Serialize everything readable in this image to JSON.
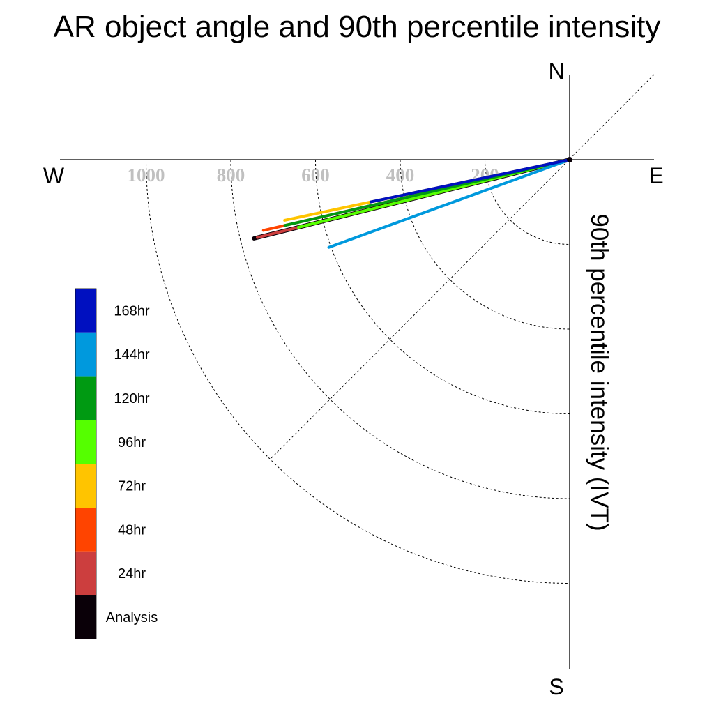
{
  "title": "AR object angle and 90th percentile intensity",
  "compass": {
    "north": "N",
    "south": "S",
    "east": "E",
    "west": "W"
  },
  "chart_data": {
    "type": "polar-vector",
    "title": "AR object angle and 90th percentile intensity",
    "radial_label": "90th percentile intensity (IVT)",
    "radial_ticks": [
      200,
      400,
      600,
      800,
      1000
    ],
    "radial_tick_labels": [
      "200",
      "400",
      "600",
      "800",
      "1000"
    ],
    "rmax": 1200,
    "grid": true,
    "legend_position": "left",
    "series": [
      {
        "name": "168hr",
        "color": "#0010C0",
        "angle_deg": 192,
        "intensity": 480
      },
      {
        "name": "144hr",
        "color": "#0099DD",
        "angle_deg": 200,
        "intensity": 605
      },
      {
        "name": "120hr",
        "color": "#009A12",
        "angle_deg": 193,
        "intensity": 690
      },
      {
        "name": "96hr",
        "color": "#55FF00",
        "angle_deg": 194,
        "intensity": 660
      },
      {
        "name": "72hr",
        "color": "#FFC400",
        "angle_deg": 192,
        "intensity": 688
      },
      {
        "name": "48hr",
        "color": "#FF4400",
        "angle_deg": 193,
        "intensity": 742
      },
      {
        "name": "24hr",
        "color": "#CC3E3E",
        "angle_deg": 194,
        "intensity": 760
      },
      {
        "name": "Analysis",
        "color": "#0A0008",
        "angle_deg": 194,
        "intensity": 768
      }
    ]
  }
}
